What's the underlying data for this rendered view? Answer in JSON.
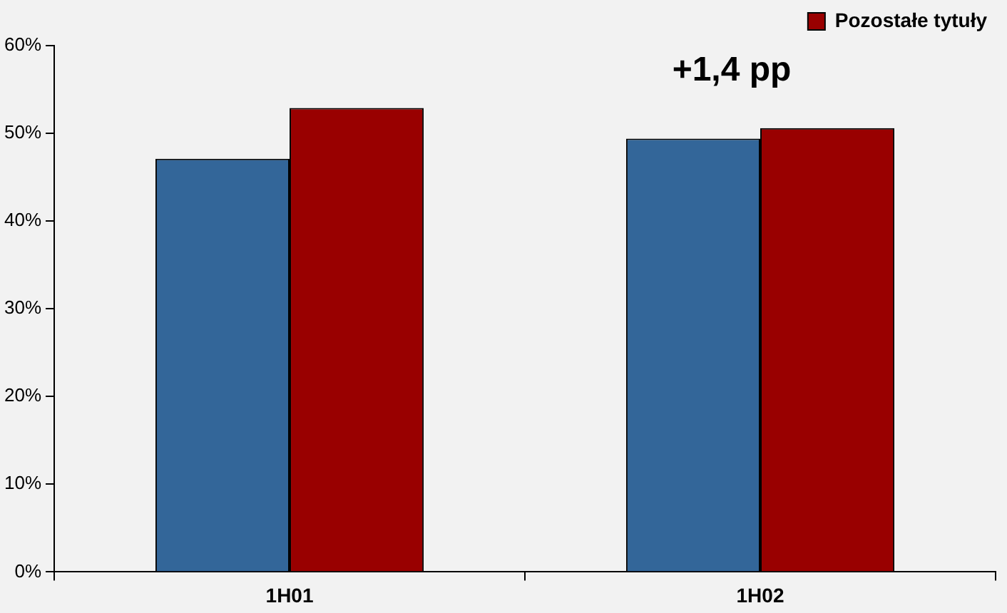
{
  "chart_data": {
    "type": "bar",
    "categories": [
      "1H01",
      "1H02"
    ],
    "series": [
      {
        "color": "#336699",
        "values": [
          47.1,
          49.4
        ]
      },
      {
        "name": "Pozostałe tytuły",
        "color": "#990000",
        "values": [
          52.9,
          50.6
        ]
      }
    ],
    "ylim": [
      0,
      60
    ],
    "yticks": [
      {
        "value": 0,
        "label": "0%"
      },
      {
        "value": 10,
        "label": "10%"
      },
      {
        "value": 20,
        "label": "20%"
      },
      {
        "value": 30,
        "label": "30%"
      },
      {
        "value": 40,
        "label": "40%"
      },
      {
        "value": 50,
        "label": "50%"
      },
      {
        "value": 60,
        "label": "60%"
      }
    ],
    "annotations": [
      "+1,4 pp"
    ],
    "legend": "top right",
    "grid": false
  }
}
